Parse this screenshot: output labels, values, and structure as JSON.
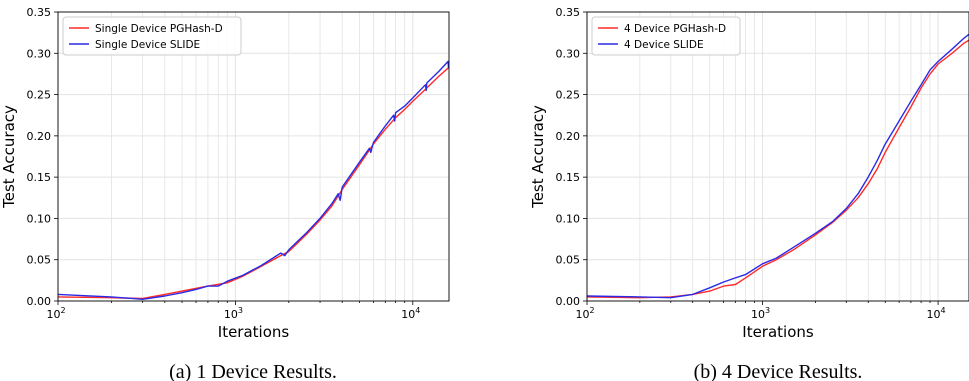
{
  "chart_data": [
    {
      "type": "line",
      "xscale": "log",
      "xlim": [
        100,
        16000
      ],
      "ylim": [
        0,
        0.35
      ],
      "xlabel": "Iterations",
      "ylabel": "Test Accuracy",
      "xticks": [
        "10^2",
        "10^3",
        "10^4"
      ],
      "yticks": [
        "0.00",
        "0.05",
        "0.10",
        "0.15",
        "0.20",
        "0.25",
        "0.30",
        "0.35"
      ],
      "grid": true,
      "legend": "top-left",
      "caption": "(a) 1 Device Results.",
      "series": [
        {
          "name": "Single Device PGHash-D",
          "color": "#ff2a2a",
          "x": [
            100,
            200,
            300,
            400,
            500,
            700,
            900,
            1100,
            1400,
            1800,
            2000,
            2500,
            3000,
            3500,
            4000,
            5000,
            6000,
            7000,
            8000,
            9000,
            10000,
            12000,
            14000,
            16000
          ],
          "y": [
            0.005,
            0.004,
            0.003,
            0.008,
            0.012,
            0.018,
            0.022,
            0.03,
            0.042,
            0.055,
            0.06,
            0.08,
            0.098,
            0.115,
            0.135,
            0.165,
            0.19,
            0.208,
            0.222,
            0.232,
            0.242,
            0.258,
            0.272,
            0.283
          ]
        },
        {
          "name": "Single Device SLIDE",
          "color": "#2a2ae6",
          "x": [
            100,
            200,
            300,
            400,
            500,
            600,
            700,
            800,
            900,
            1100,
            1400,
            1800,
            1900,
            2000,
            2500,
            3000,
            3500,
            3800,
            3900,
            4000,
            5000,
            5700,
            5800,
            6000,
            7000,
            7800,
            7900,
            8000,
            9000,
            10000,
            11800,
            11900,
            12000,
            14000,
            15800,
            15900,
            16000
          ],
          "y": [
            0.008,
            0.005,
            0.002,
            0.006,
            0.01,
            0.014,
            0.018,
            0.018,
            0.024,
            0.031,
            0.043,
            0.058,
            0.055,
            0.062,
            0.082,
            0.1,
            0.118,
            0.13,
            0.122,
            0.138,
            0.168,
            0.185,
            0.18,
            0.192,
            0.212,
            0.225,
            0.218,
            0.228,
            0.236,
            0.246,
            0.262,
            0.255,
            0.264,
            0.278,
            0.29,
            0.283,
            0.291
          ]
        }
      ]
    },
    {
      "type": "line",
      "xscale": "log",
      "xlim": [
        100,
        15000
      ],
      "ylim": [
        0,
        0.35
      ],
      "xlabel": "Iterations",
      "ylabel": "Test Accuracy",
      "xticks": [
        "10^2",
        "10^3",
        "10^4"
      ],
      "yticks": [
        "0.00",
        "0.05",
        "0.10",
        "0.15",
        "0.20",
        "0.25",
        "0.30",
        "0.35"
      ],
      "grid": true,
      "legend": "top-left",
      "caption": "(b) 4 Device Results.",
      "series": [
        {
          "name": "4 Device PGHash-D",
          "color": "#ff2a2a",
          "x": [
            100,
            200,
            300,
            400,
            500,
            600,
            700,
            800,
            1000,
            1200,
            1500,
            2000,
            2500,
            3000,
            3500,
            4000,
            4500,
            5000,
            6000,
            7000,
            8000,
            9000,
            10000,
            12000,
            14000,
            15000
          ],
          "y": [
            0.005,
            0.004,
            0.005,
            0.008,
            0.012,
            0.018,
            0.02,
            0.028,
            0.042,
            0.05,
            0.062,
            0.08,
            0.095,
            0.11,
            0.125,
            0.142,
            0.16,
            0.18,
            0.21,
            0.235,
            0.258,
            0.275,
            0.287,
            0.3,
            0.312,
            0.316
          ]
        },
        {
          "name": "4 Device SLIDE",
          "color": "#2a2ae6",
          "x": [
            100,
            200,
            300,
            400,
            500,
            600,
            700,
            800,
            1000,
            1200,
            1500,
            2000,
            2500,
            3000,
            3500,
            4000,
            4500,
            5000,
            6000,
            7000,
            8000,
            9000,
            10000,
            12000,
            14000,
            15000
          ],
          "y": [
            0.006,
            0.005,
            0.004,
            0.008,
            0.016,
            0.023,
            0.028,
            0.032,
            0.045,
            0.052,
            0.065,
            0.082,
            0.096,
            0.112,
            0.13,
            0.15,
            0.17,
            0.19,
            0.218,
            0.242,
            0.262,
            0.28,
            0.29,
            0.305,
            0.318,
            0.323
          ]
        }
      ]
    }
  ]
}
